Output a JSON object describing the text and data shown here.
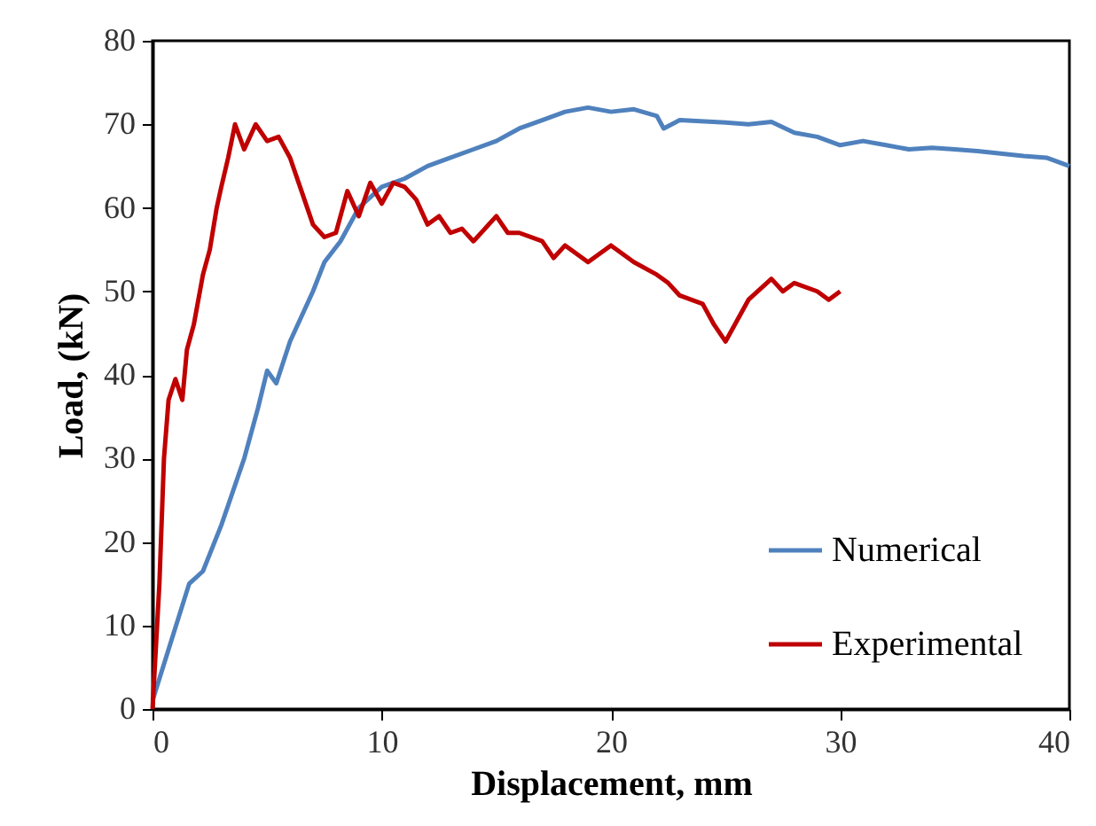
{
  "chart_data": {
    "type": "line",
    "xlabel": "Displacement, mm",
    "ylabel": "Load, (kN)",
    "xlim": [
      0,
      40
    ],
    "xticks": [
      0,
      10,
      20,
      30,
      40
    ],
    "ylim": [
      0,
      80
    ],
    "yticks": [
      0,
      10,
      20,
      30,
      40,
      50,
      60,
      70,
      80
    ],
    "grid": false,
    "legend": "bottom right",
    "marker": "none",
    "line_style": "solid",
    "series": [
      {
        "name": "Numerical",
        "color": "#4f81bd",
        "x": [
          0,
          0.8,
          1.6,
          2.2,
          3,
          4,
          4.6,
          5,
          5.4,
          6,
          7,
          7.5,
          8.2,
          9,
          10,
          11,
          12,
          13,
          14,
          15,
          16,
          17,
          18,
          19,
          20,
          21,
          22,
          22.3,
          23,
          25,
          26,
          27,
          28,
          29,
          30,
          31,
          32,
          33,
          34,
          35,
          36,
          37,
          38,
          39,
          40
        ],
        "values": [
          1,
          8,
          15,
          16.5,
          22,
          30,
          36,
          40.5,
          39,
          44,
          50,
          53.5,
          56,
          60,
          62.5,
          63.5,
          65,
          66,
          67,
          68,
          69.5,
          70.5,
          71.5,
          72,
          71.5,
          71.8,
          71,
          69.5,
          70.5,
          70.2,
          70,
          70.3,
          69,
          68.5,
          67.5,
          68,
          67.5,
          67,
          67.2,
          67,
          66.8,
          66.5,
          66.2,
          66,
          65
        ]
      },
      {
        "name": "Experimental",
        "color": "#c00000",
        "x": [
          0,
          0.3,
          0.5,
          0.7,
          1,
          1.3,
          1.5,
          1.8,
          2.2,
          2.5,
          2.8,
          3,
          3.3,
          3.6,
          4,
          4.5,
          5,
          5.5,
          6,
          6.5,
          7,
          7.5,
          8,
          8.5,
          9,
          9.5,
          10,
          10.5,
          11,
          11.5,
          12,
          12.5,
          13,
          13.5,
          14,
          14.5,
          15,
          15.5,
          16,
          17,
          17.5,
          18,
          19,
          20,
          21,
          22,
          22.5,
          23,
          24,
          24.5,
          25,
          25.5,
          26,
          27,
          27.5,
          28,
          29,
          29.5,
          30
        ],
        "values": [
          0,
          15,
          30,
          37,
          39.5,
          37,
          43,
          46,
          52,
          55,
          60,
          62.5,
          66,
          70,
          67,
          70,
          68,
          68.5,
          66,
          62,
          58,
          56.5,
          57,
          62,
          59,
          63,
          60.5,
          63,
          62.5,
          61,
          58,
          59,
          57,
          57.5,
          56,
          57.5,
          59,
          57,
          57,
          56,
          54,
          55.5,
          53.5,
          55.5,
          53.5,
          52,
          51,
          49.5,
          48.5,
          46,
          44,
          46.5,
          49,
          51.5,
          50,
          51,
          50,
          49,
          50
        ]
      }
    ]
  }
}
